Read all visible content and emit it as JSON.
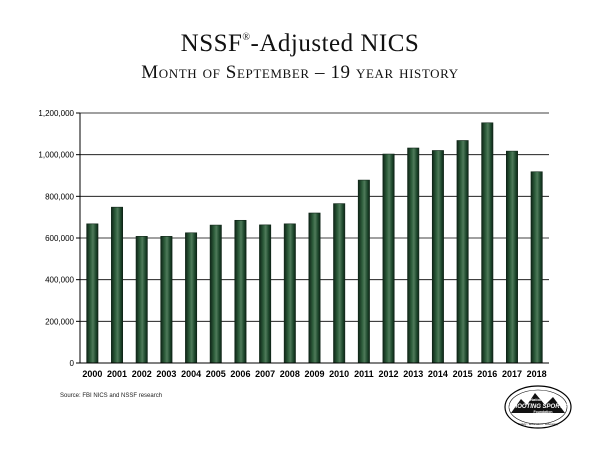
{
  "header": {
    "title_main": "NSSF",
    "title_mark": "®",
    "title_rest": "-Adjusted NICS",
    "subtitle": "Month of September – 19 year history"
  },
  "source": "Source: FBI NICS and NSSF research",
  "logo": {
    "line1": "National",
    "line2": "SHOOTING SPORTS",
    "line3": "Foundation",
    "tagline": "Safety · Education · Advocacy"
  },
  "colors": {
    "bar_fill": "#1f4a2e",
    "bar_highlight": "#4f7a5a",
    "bar_edge": "#0e2416",
    "gridline": "#000000"
  },
  "chart_data": {
    "type": "bar",
    "title": "NSSF-Adjusted NICS",
    "subtitle": "Month of September – 19 year history",
    "xlabel": "",
    "ylabel": "",
    "categories": [
      "2000",
      "2001",
      "2002",
      "2003",
      "2004",
      "2005",
      "2006",
      "2007",
      "2008",
      "2009",
      "2010",
      "2011",
      "2012",
      "2013",
      "2014",
      "2015",
      "2016",
      "2017",
      "2018"
    ],
    "values": [
      668000,
      748000,
      608000,
      608000,
      625000,
      662000,
      685000,
      663000,
      668000,
      720000,
      765000,
      878000,
      1003000,
      1032000,
      1020000,
      1068000,
      1153000,
      1017000,
      918000
    ],
    "ylim": [
      0,
      1200000
    ],
    "yticks": [
      0,
      200000,
      400000,
      600000,
      800000,
      1000000,
      1200000
    ],
    "ytick_labels": [
      "0",
      "200,000",
      "400,000",
      "600,000",
      "800,000",
      "1,000,000",
      "1,200,000"
    ],
    "grid": true,
    "legend": "none"
  }
}
